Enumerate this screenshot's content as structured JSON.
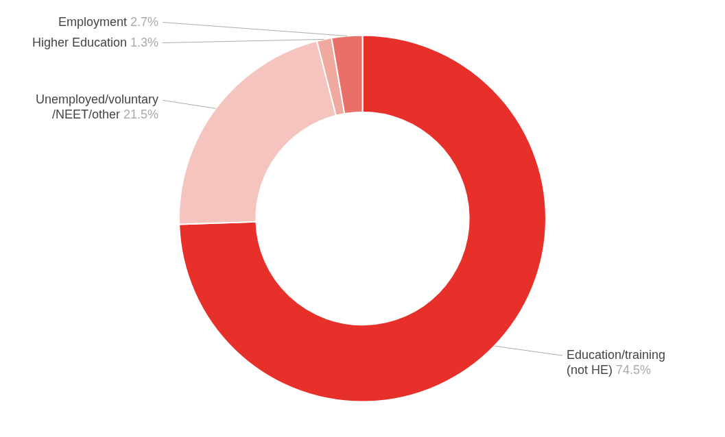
{
  "chart_data": {
    "type": "doughnut",
    "categories": [
      "Education/training\n(not HE)",
      "Unemployed/voluntary\n/NEET/other",
      "Higher Education",
      "Employment"
    ],
    "values": [
      74.5,
      21.5,
      1.3,
      2.7
    ],
    "value_labels": [
      "74.5%",
      "21.5%",
      "1.3%",
      "2.7%"
    ],
    "colors": [
      "#E8302A",
      "#F5C4BE",
      "#F0A99F",
      "#E87068"
    ],
    "data_labels": true
  }
}
